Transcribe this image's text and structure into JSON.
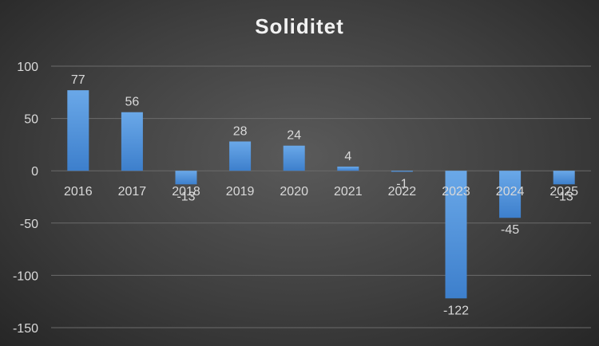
{
  "chart_data": {
    "type": "bar",
    "title": "Soliditet",
    "categories": [
      "2016",
      "2017",
      "2018",
      "2019",
      "2020",
      "2021",
      "2022",
      "2023",
      "2024",
      "2025"
    ],
    "values": [
      77,
      56,
      -13,
      28,
      24,
      4,
      -1,
      -122,
      -45,
      -13
    ],
    "data_labels": [
      "77",
      "56",
      "-13",
      "28",
      "24",
      "4",
      "-1",
      "-122",
      "-45",
      "-13"
    ],
    "y_ticks": [
      100,
      50,
      0,
      -50,
      -100,
      -150
    ],
    "ylim": [
      -150,
      100
    ],
    "grid": true,
    "legend": "none",
    "colors": {
      "bar_top": "#6aa8e8",
      "bar_bottom": "#3d7fcc",
      "grid": "#6b6b6b",
      "text": "#d9d9d9"
    }
  }
}
